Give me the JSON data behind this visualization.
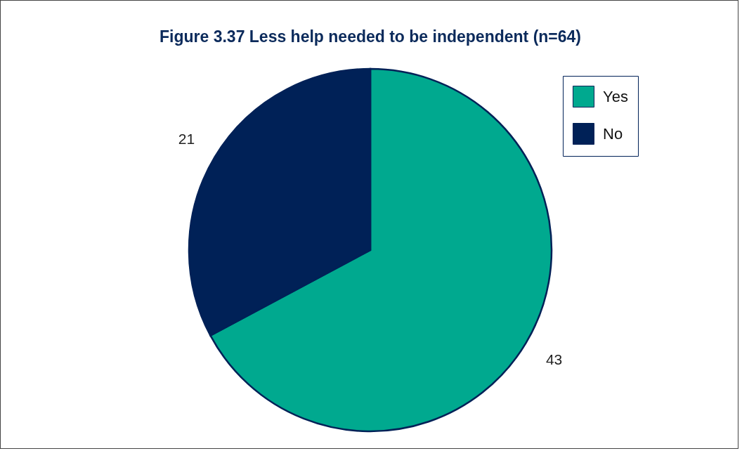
{
  "chart_data": {
    "type": "pie",
    "title": "Figure 3.37 Less help needed to be independent  (n=64)",
    "categories": [
      "Yes",
      "No"
    ],
    "values": [
      43,
      21
    ],
    "colors": [
      "#00a98f",
      "#002157"
    ],
    "data_labels": true,
    "legend": "top right"
  }
}
